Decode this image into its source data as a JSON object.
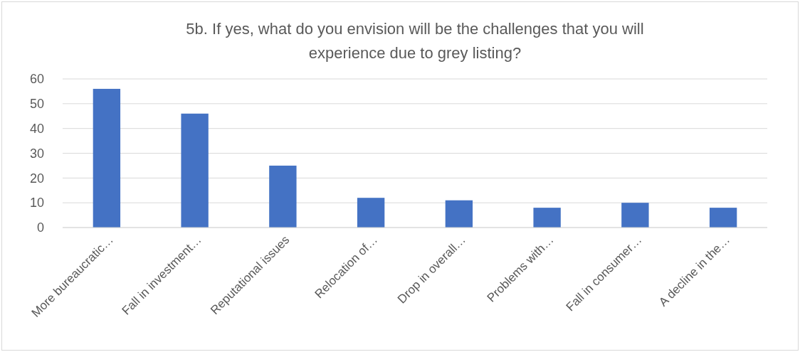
{
  "chart_data": {
    "type": "bar",
    "title": "5b. If yes, what do you envision will be the challenges that you will experience due to grey listing?",
    "categories": [
      "More bureaucratic…",
      "Fall in investment…",
      "Reputational issues",
      "Relocation of…",
      "Drop in overall…",
      "Problems with…",
      "Fall in consumer…",
      "A decline in the…"
    ],
    "values": [
      56,
      46,
      25,
      12,
      11,
      8,
      10,
      8
    ],
    "color": "#4472c4",
    "ylim": [
      0,
      60
    ],
    "yticks": [
      0,
      10,
      20,
      30,
      40,
      50,
      60
    ],
    "grid": "y"
  }
}
